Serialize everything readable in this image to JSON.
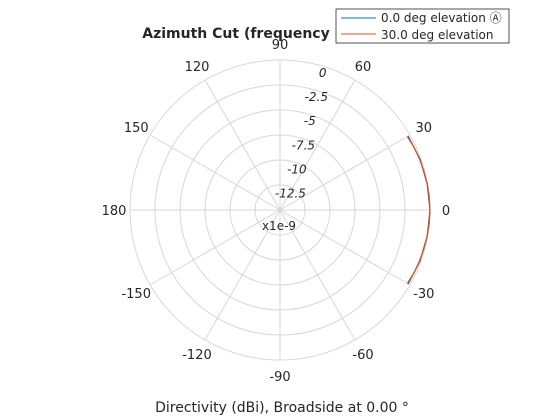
{
  "chart_data": {
    "type": "line",
    "coordinate_system": "polar",
    "title": "Azimuth Cut (frequency",
    "caption": "Directivity (dBi), Broadside at 0.00 °",
    "radial_multiplier": "x1e-9",
    "angle_ticks": [
      "0",
      "30",
      "60",
      "90",
      "120",
      "150",
      "180",
      "-150",
      "-120",
      "-90",
      "-60",
      "-30"
    ],
    "radial_ticks": [
      "0",
      "-2.5",
      "-5",
      "-7.5",
      "-10",
      "-12.5"
    ],
    "radial_range_labels": [
      -15,
      0
    ],
    "legend": {
      "placement": "top-right",
      "entries": [
        "0.0 deg elevation Ⓐ",
        "30.0 deg elevation"
      ]
    },
    "series": [
      {
        "name": "0.0 deg elevation Ⓐ",
        "color": "#0072bd",
        "azimuth_deg": [
          -30,
          -20,
          -10,
          0,
          10,
          20,
          30
        ],
        "values": [
          -0.2,
          -0.1,
          -0.05,
          0,
          -0.05,
          -0.1,
          -0.2
        ]
      },
      {
        "name": "30.0 deg elevation",
        "color": "#d95319",
        "azimuth_deg": [
          -30,
          -25,
          -20,
          -15,
          -10,
          -5,
          0,
          5,
          10,
          15,
          20,
          25,
          30
        ],
        "values": [
          -0.3,
          -0.2,
          -0.15,
          -0.1,
          -0.05,
          -0.02,
          0,
          -0.02,
          -0.05,
          -0.1,
          -0.15,
          -0.2,
          -0.3
        ]
      }
    ]
  }
}
